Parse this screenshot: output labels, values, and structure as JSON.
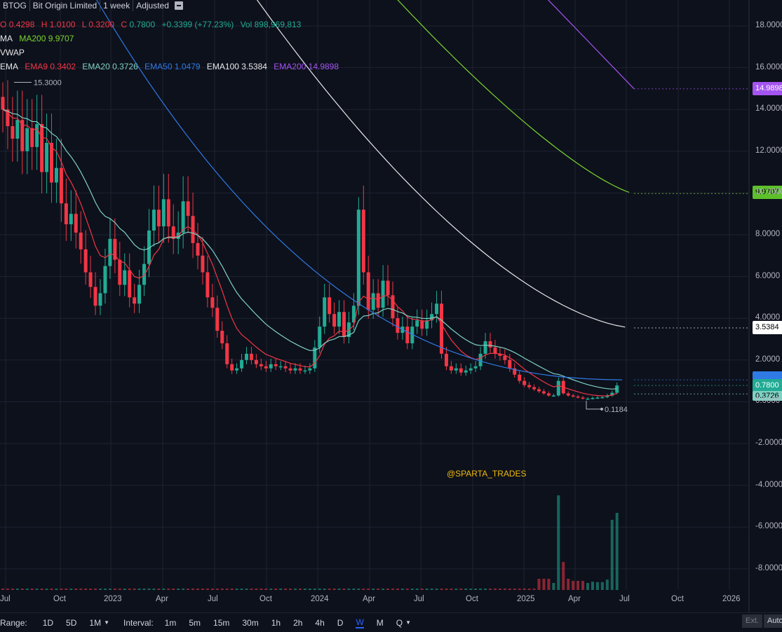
{
  "header": {
    "symbol": "BTOG",
    "name": "Bit Origin Limited",
    "interval": "1 week",
    "adjust": "Adjusted",
    "menu_icon": "list-icon"
  },
  "ohlc": {
    "o_label": "O",
    "o": "0.4298",
    "h_label": "H",
    "h": "1.0100",
    "l_label": "L",
    "l": "0.3200",
    "c_label": "C",
    "c": "0.7800",
    "change": "+0.3399 (+77.23%)",
    "vol_label": "Vol",
    "vol": "898,969,813"
  },
  "ma_legend": {
    "group": "MA",
    "ma200": "MA200 9.9707"
  },
  "vwap_legend": {
    "group": "VWAP"
  },
  "ema_legend": {
    "group": "EMA",
    "ema9": "EMA9 0.3402",
    "ema20": "EMA20 0.3726",
    "ema50": "EMA50 1.0479",
    "ema100": "EMA100 3.5384",
    "ema200": "EMA200 14.9898"
  },
  "high_marker": "15.3000",
  "low_marker": "0.1184",
  "price_labels": {
    "ema200": "14.9898",
    "ma200": "9.9707",
    "ema100": "3.5384",
    "close": "0.7800",
    "ema20": "0.3726"
  },
  "y_ticks": [
    "18.0000",
    "16.0000",
    "14.0000",
    "12.0000",
    "10.0000",
    "8.0000",
    "6.0000",
    "4.0000",
    "2.0000",
    "0.0000",
    "-2.0000",
    "-4.0000",
    "-6.0000",
    "-8.0000"
  ],
  "x_ticks": [
    "Jul",
    "Oct",
    "2023",
    "Apr",
    "Jul",
    "Oct",
    "2024",
    "Apr",
    "Jul",
    "Oct",
    "2025",
    "Apr",
    "Jul",
    "Oct",
    "2026"
  ],
  "watermark": "@SPARTA_TRADES",
  "bottom_bar": {
    "range_label": "Range:",
    "ranges": [
      "1D",
      "5D",
      "1M"
    ],
    "interval_label": "Interval:",
    "intervals": [
      "1m",
      "5m",
      "15m",
      "30m",
      "1h",
      "2h",
      "4h",
      "D",
      "W",
      "M",
      "Q"
    ],
    "active_interval": "W",
    "ext": "Ext.",
    "auto": "Auto"
  },
  "colors": {
    "up": "#22ab94",
    "down": "#f23645",
    "ema9": "#f23645",
    "ema20": "#7fd1c3",
    "ema50": "#2f7ae5",
    "ema100": "#e8e8e8",
    "ema200": "#a454f0",
    "ma200": "#7cd62c",
    "background": "#0d111c",
    "grid": "#1e2330"
  },
  "chart_data": {
    "type": "candlestick",
    "title": "",
    "x": [
      "2022-07",
      "2022-10",
      "2023-01",
      "2023-04",
      "2023-07",
      "2023-10",
      "2024-01",
      "2024-04",
      "2024-07",
      "2024-10",
      "2025-01",
      "2025-04",
      "2025-07"
    ],
    "ylim": [
      -9,
      19
    ],
    "grid": true,
    "closes_weekly": [
      14.0,
      13.2,
      12.6,
      13.5,
      12.0,
      13.1,
      12.2,
      13.3,
      11.0,
      12.4,
      10.5,
      11.2,
      9.5,
      8.5,
      9.0,
      8.1,
      7.3,
      6.2,
      5.5,
      4.6,
      5.2,
      6.5,
      7.8,
      6.8,
      5.6,
      6.3,
      5.0,
      4.7,
      5.6,
      6.6,
      8.2,
      9.2,
      8.4,
      9.7,
      8.4,
      7.8,
      8.1,
      9.6,
      8.9,
      7.6,
      7.0,
      6.2,
      5.0,
      4.5,
      3.4,
      2.8,
      1.8,
      1.5,
      1.6,
      2.0,
      2.3,
      2.0,
      1.8,
      1.7,
      1.6,
      1.8,
      1.7,
      1.7,
      1.6,
      1.5,
      1.6,
      1.5,
      1.5,
      1.6,
      2.6,
      3.6,
      5.0,
      4.2,
      3.6,
      4.3,
      3.1,
      3.8,
      4.6,
      9.2,
      6.2,
      4.4,
      5.2,
      4.5,
      5.8,
      5.1,
      4.0,
      3.3,
      3.6,
      2.8,
      3.6,
      3.9,
      3.5,
      3.9,
      4.2,
      4.7,
      2.3,
      1.7,
      1.5,
      1.6,
      1.4,
      1.5,
      1.6,
      1.7,
      2.3,
      2.9,
      2.6,
      2.3,
      2.2,
      2.0,
      1.6,
      1.3,
      1.0,
      0.8,
      0.7,
      0.6,
      0.5,
      0.4,
      0.3,
      0.3,
      1.0,
      0.4,
      0.3,
      0.25,
      0.2,
      0.15,
      0.15,
      0.18,
      0.2,
      0.22,
      0.3,
      0.43,
      0.78
    ],
    "ema100_end": 3.5384,
    "ema200_end": 14.9898,
    "ma200_end": 9.9707,
    "ema50_end": 1.0479,
    "ema20_end": 0.3726,
    "ema9_end": 0.3402,
    "period_high": 15.3,
    "period_low": 0.1184
  }
}
